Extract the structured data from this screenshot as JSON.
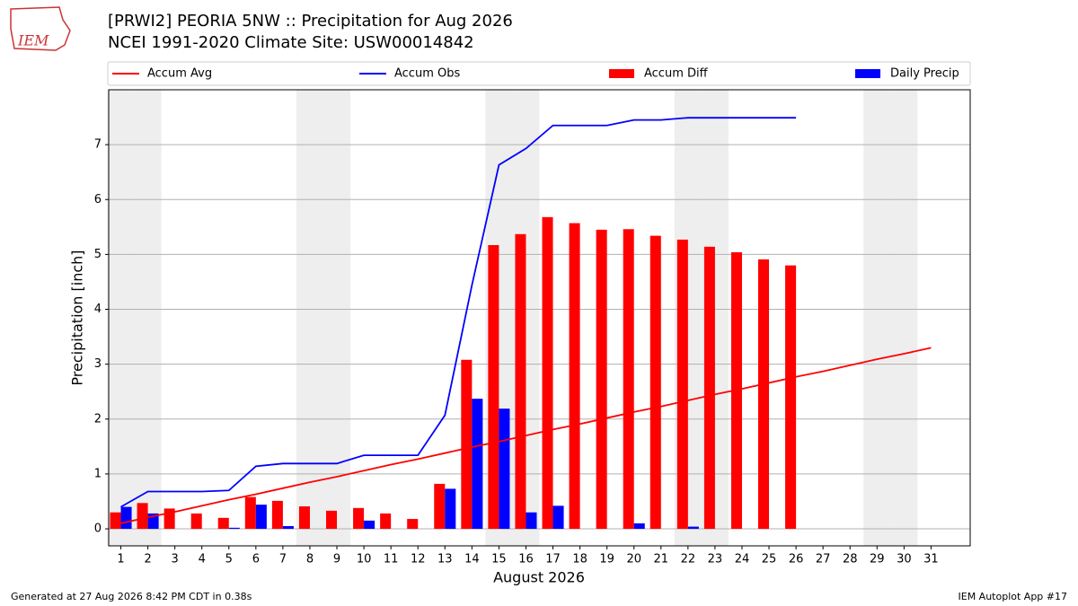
{
  "logo": "IEM",
  "chart_data": {
    "type": "combo",
    "title": "[PRWI2] PEORIA 5NW :: Precipitation for Aug 2026",
    "subtitle": "NCEI 1991-2020 Climate Site: USW00014842",
    "xlabel": "August 2026",
    "ylabel": "Precipitation [inch]",
    "x": [
      1,
      2,
      3,
      4,
      5,
      6,
      7,
      8,
      9,
      10,
      11,
      12,
      13,
      14,
      15,
      16,
      17,
      18,
      19,
      20,
      21,
      22,
      23,
      24,
      25,
      26,
      27,
      28,
      29,
      30,
      31
    ],
    "xlim": [
      0.55,
      32.45
    ],
    "xticks": [
      1,
      2,
      3,
      4,
      5,
      6,
      7,
      8,
      9,
      10,
      11,
      12,
      13,
      14,
      15,
      16,
      17,
      18,
      19,
      20,
      21,
      22,
      23,
      24,
      25,
      26,
      27,
      28,
      29,
      30,
      31
    ],
    "ylim": [
      -0.31,
      8.0
    ],
    "yticks": [
      0,
      1,
      2,
      3,
      4,
      5,
      6,
      7
    ],
    "grid": true,
    "weekend_days": [
      1,
      2,
      8,
      9,
      15,
      16,
      22,
      23,
      29,
      30
    ],
    "series": [
      {
        "name": "Accum Avg",
        "type": "line",
        "color": "#ff0000",
        "values": [
          0.1,
          0.21,
          0.31,
          0.42,
          0.53,
          0.63,
          0.74,
          0.85,
          0.95,
          1.06,
          1.17,
          1.27,
          1.38,
          1.49,
          1.59,
          1.7,
          1.81,
          1.91,
          2.02,
          2.13,
          2.23,
          2.34,
          2.45,
          2.55,
          2.66,
          2.77,
          2.87,
          2.98,
          3.09,
          3.19,
          3.3
        ]
      },
      {
        "name": "Accum Obs",
        "type": "line",
        "color": "#0000ff",
        "values": [
          0.4,
          0.68,
          0.68,
          0.68,
          0.7,
          1.14,
          1.19,
          1.19,
          1.19,
          1.34,
          1.34,
          1.34,
          2.07,
          4.44,
          6.63,
          6.93,
          7.35,
          7.35,
          7.35,
          7.45,
          7.45,
          7.49,
          7.49,
          7.49,
          7.49,
          7.49,
          null,
          null,
          null,
          null,
          null
        ]
      },
      {
        "name": "Accum Diff",
        "type": "bar",
        "offset": -0.4,
        "color": "#ff0000",
        "values": [
          0.3,
          0.47,
          0.37,
          0.28,
          0.2,
          0.58,
          0.51,
          0.41,
          0.33,
          0.38,
          0.28,
          0.18,
          0.82,
          3.08,
          5.17,
          5.37,
          5.68,
          5.57,
          5.45,
          5.46,
          5.34,
          5.27,
          5.14,
          5.04,
          4.91,
          4.8,
          null,
          null,
          null,
          null,
          null
        ]
      },
      {
        "name": "Daily Precip",
        "type": "bar",
        "offset": 0,
        "color": "#0000ff",
        "values": [
          0.4,
          0.28,
          0,
          0,
          0.02,
          0.44,
          0.05,
          0,
          0,
          0.15,
          0,
          0,
          0.73,
          2.37,
          2.19,
          0.3,
          0.42,
          0,
          0,
          0.1,
          0,
          0.04,
          0,
          0,
          0,
          0,
          null,
          null,
          null,
          null,
          null
        ]
      }
    ]
  },
  "footer": {
    "left": "Generated at 27 Aug 2026 8:42 PM CDT in 0.38s",
    "right": "IEM Autoplot App #17"
  }
}
